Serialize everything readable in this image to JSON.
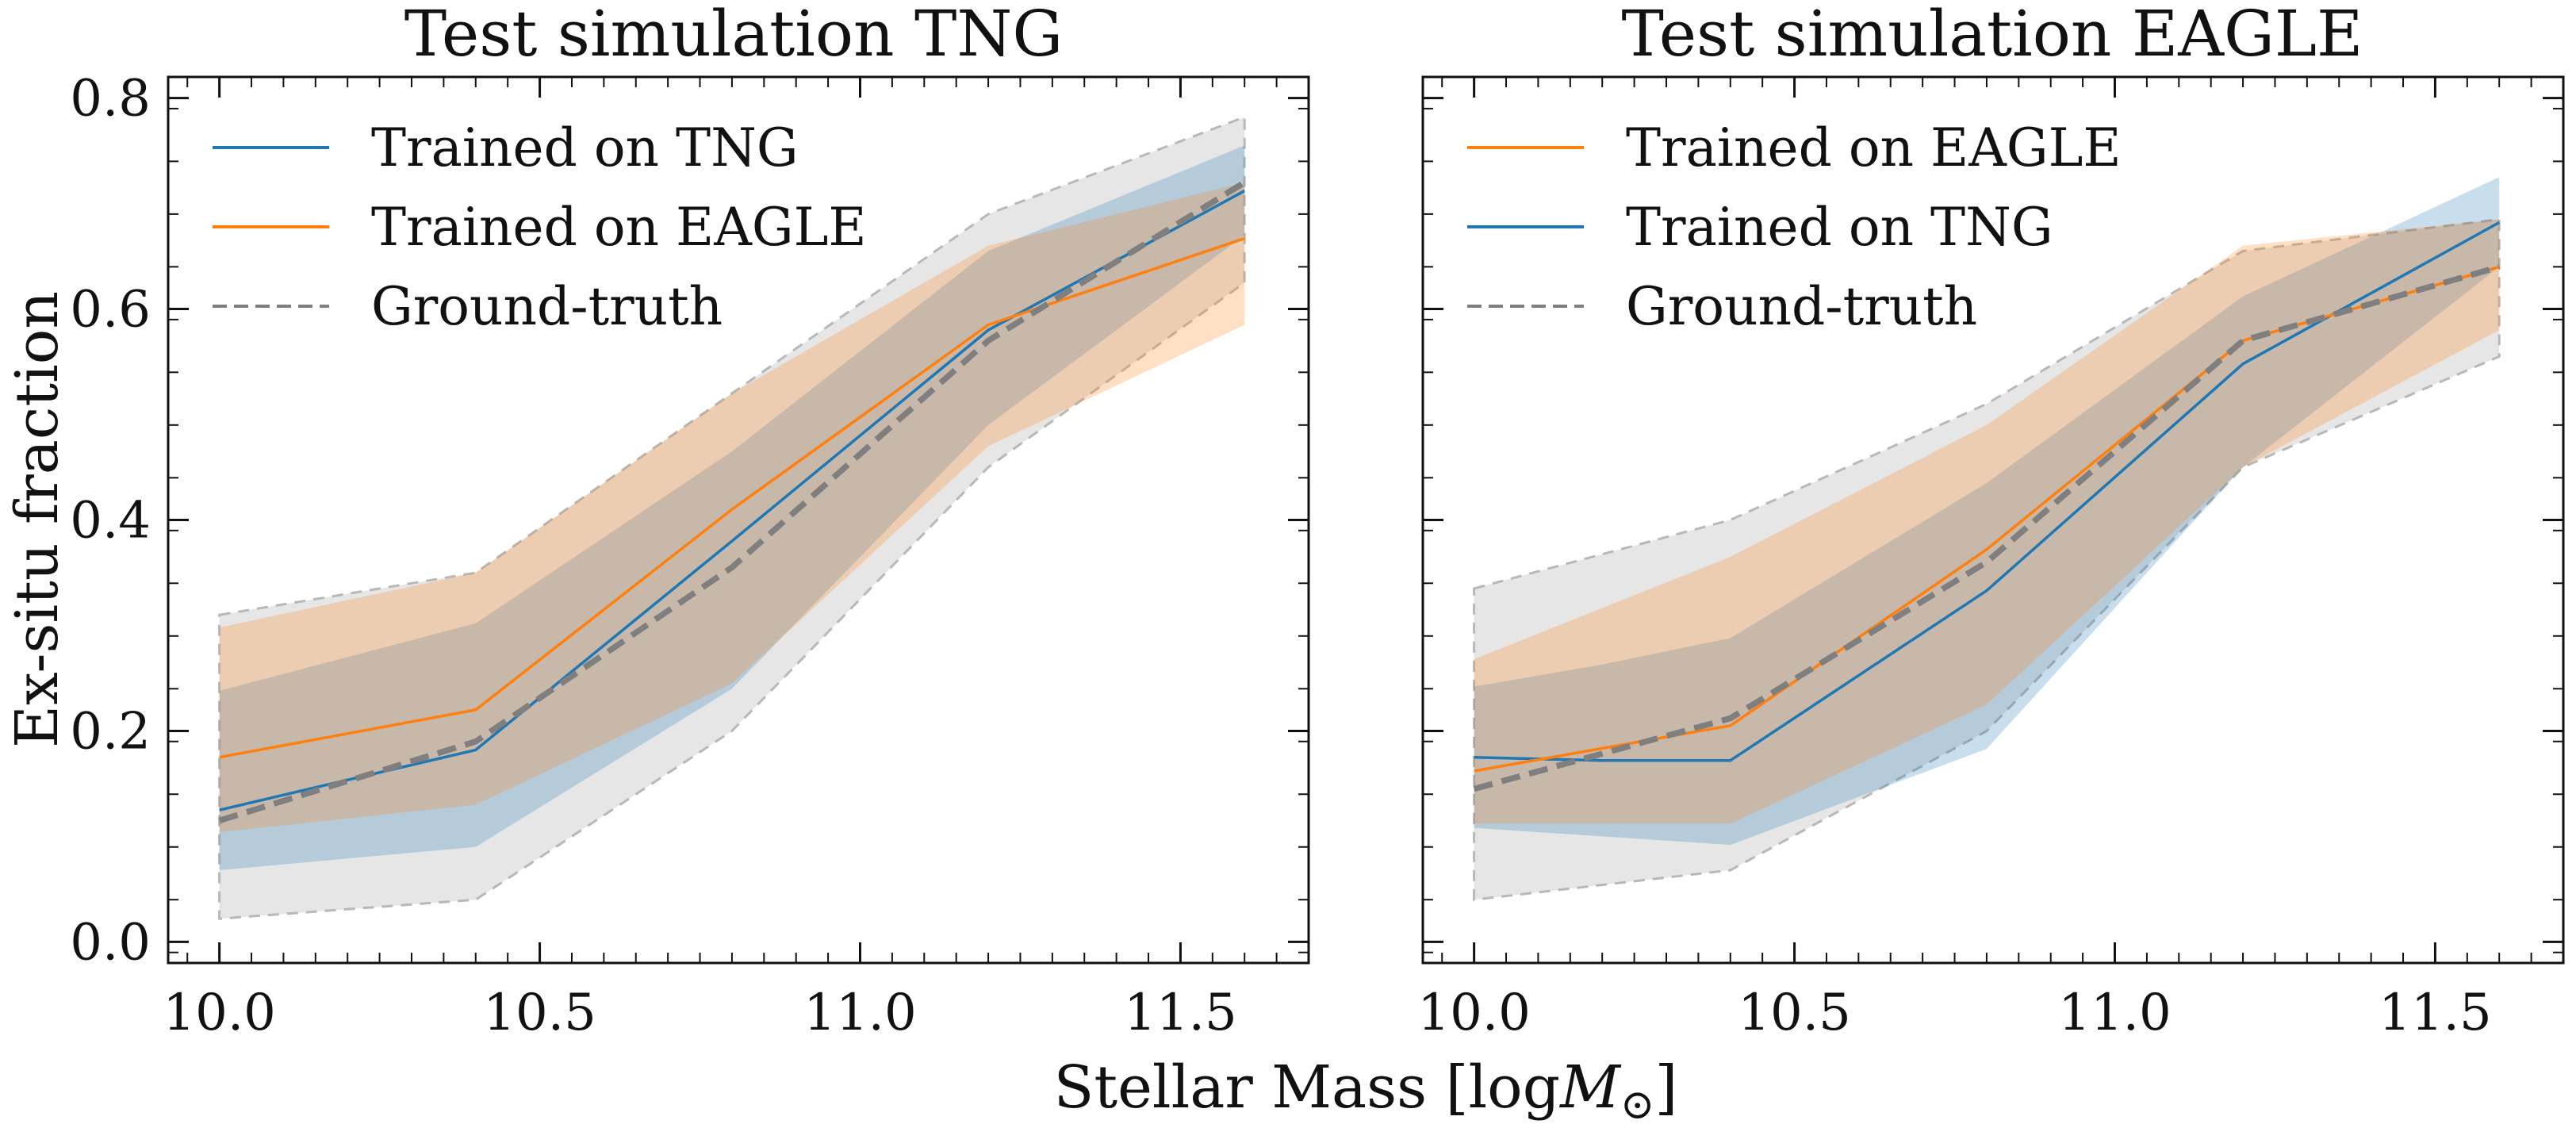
{
  "colors": {
    "tng": "#1f77b4",
    "eagle": "#ff7f0e",
    "truth": "#7f7f7f",
    "truth_band": "#bdbdbd",
    "frame": "#111111"
  },
  "figure": {
    "xlabel": "Stellar Mass [log",
    "xlabel_symbol": "M",
    "xlabel_subscript": "⊙",
    "xlabel_close": "]",
    "ylabel": "Ex-situ fraction"
  },
  "chart_data": [
    {
      "type": "line",
      "title": "Test simulation TNG",
      "xlim": [
        9.92,
        11.7
      ],
      "ylim": [
        -0.02,
        0.82
      ],
      "xticks": [
        10.0,
        10.5,
        11.0,
        11.5
      ],
      "xtick_labels": [
        "10.0",
        "10.5",
        "11.0",
        "11.5"
      ],
      "yticks": [
        0.0,
        0.2,
        0.4,
        0.6,
        0.8
      ],
      "ytick_labels": [
        "0.0",
        "0.2",
        "0.4",
        "0.6",
        "0.8"
      ],
      "legend": [
        "Trained on TNG",
        "Trained on EAGLE",
        "Ground-truth"
      ],
      "legend_location": "upper-left",
      "series": [
        {
          "name": "Ground-truth",
          "color_key": "truth",
          "style": "dashed",
          "x": [
            10.0,
            10.4,
            10.8,
            11.2,
            11.6
          ],
          "y": [
            0.115,
            0.19,
            0.355,
            0.57,
            0.72
          ],
          "band_lower": [
            0.022,
            0.04,
            0.2,
            0.45,
            0.625
          ],
          "band_upper": [
            0.31,
            0.35,
            0.52,
            0.69,
            0.782
          ]
        },
        {
          "name": "Trained on TNG",
          "color_key": "tng",
          "style": "solid",
          "x": [
            10.0,
            10.4,
            10.8,
            11.2,
            11.6
          ],
          "y": [
            0.125,
            0.182,
            0.38,
            0.58,
            0.712
          ],
          "band_lower": [
            0.068,
            0.09,
            0.24,
            0.49,
            0.67
          ],
          "band_upper": [
            0.238,
            0.302,
            0.465,
            0.655,
            0.755
          ]
        },
        {
          "name": "Trained on EAGLE",
          "color_key": "eagle",
          "style": "solid",
          "x": [
            10.0,
            10.4,
            10.8,
            11.2,
            11.6
          ],
          "y": [
            0.175,
            0.22,
            0.41,
            0.585,
            0.667
          ],
          "band_lower": [
            0.104,
            0.13,
            0.245,
            0.47,
            0.585
          ],
          "band_upper": [
            0.298,
            0.35,
            0.52,
            0.66,
            0.72
          ]
        }
      ]
    },
    {
      "type": "line",
      "title": "Test simulation EAGLE",
      "xlim": [
        9.92,
        11.7
      ],
      "ylim": [
        -0.02,
        0.82
      ],
      "xticks": [
        10.0,
        10.5,
        11.0,
        11.5
      ],
      "xtick_labels": [
        "10.0",
        "10.5",
        "11.0",
        "11.5"
      ],
      "yticks": [
        0.0,
        0.2,
        0.4,
        0.6,
        0.8
      ],
      "ytick_labels": [
        "",
        "",
        "",
        "",
        ""
      ],
      "legend": [
        "Trained on EAGLE",
        "Trained on TNG",
        "Ground-truth"
      ],
      "legend_location": "upper-left",
      "series": [
        {
          "name": "Ground-truth",
          "color_key": "truth",
          "style": "dashed",
          "x": [
            10.0,
            10.4,
            10.8,
            11.2,
            11.6
          ],
          "y": [
            0.145,
            0.212,
            0.36,
            0.57,
            0.64
          ],
          "band_lower": [
            0.04,
            0.068,
            0.2,
            0.45,
            0.555
          ],
          "band_upper": [
            0.335,
            0.4,
            0.51,
            0.655,
            0.685
          ]
        },
        {
          "name": "Trained on TNG",
          "color_key": "tng",
          "style": "solid",
          "x": [
            10.0,
            10.2,
            10.4,
            10.8,
            11.2,
            11.6
          ],
          "y": [
            0.175,
            0.172,
            0.172,
            0.333,
            0.548,
            0.682
          ],
          "band_lower": [
            0.108,
            0.1,
            0.092,
            0.183,
            0.45,
            0.64
          ],
          "band_upper": [
            0.242,
            0.263,
            0.288,
            0.435,
            0.612,
            0.725
          ]
        },
        {
          "name": "Trained on EAGLE",
          "color_key": "eagle",
          "style": "solid",
          "x": [
            10.0,
            10.4,
            10.8,
            11.2,
            11.6
          ],
          "y": [
            0.162,
            0.205,
            0.372,
            0.57,
            0.64
          ],
          "band_lower": [
            0.112,
            0.112,
            0.225,
            0.45,
            0.58
          ],
          "band_upper": [
            0.268,
            0.365,
            0.49,
            0.66,
            0.685
          ]
        }
      ]
    }
  ]
}
